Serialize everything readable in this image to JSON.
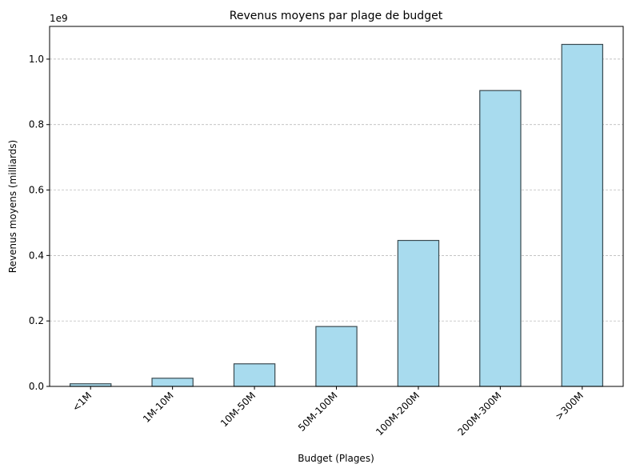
{
  "chart_data": {
    "type": "bar",
    "title": "Revenus moyens par plage de budget",
    "xlabel": "Budget (Plages)",
    "ylabel": "Revenus moyens (milliards)",
    "offset_label": "1e9",
    "categories": [
      "<1M",
      "1M-10M",
      "10M-50M",
      "50M-100M",
      "100M-200M",
      "200M-300M",
      ">300M"
    ],
    "values": [
      8000000,
      25000000,
      69000000,
      183000000,
      446000000,
      904000000,
      1045000000
    ],
    "ylim": [
      0,
      1100000000
    ],
    "yticks": [
      0,
      200000000,
      400000000,
      600000000,
      800000000,
      1000000000
    ],
    "ytick_labels": [
      "0.0",
      "0.2",
      "0.4",
      "0.6",
      "0.8",
      "1.0"
    ],
    "bar_color": "#a8dbee",
    "bar_edge_color": "#3a4a50",
    "grid": "y-dashed",
    "x_tick_rotation": "45°"
  }
}
